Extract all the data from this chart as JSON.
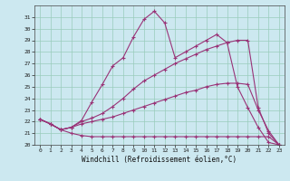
{
  "xlabel": "Windchill (Refroidissement éolien,°C)",
  "bg_color": "#cce8f0",
  "grid_color": "#99ccbb",
  "line_color": "#993377",
  "xlim": [
    -0.5,
    23.5
  ],
  "ylim": [
    20,
    32
  ],
  "yticks": [
    20,
    21,
    22,
    23,
    24,
    25,
    26,
    27,
    28,
    29,
    30,
    31
  ],
  "xticks": [
    0,
    1,
    2,
    3,
    4,
    5,
    6,
    7,
    8,
    9,
    10,
    11,
    12,
    13,
    14,
    15,
    16,
    17,
    18,
    19,
    20,
    21,
    22,
    23
  ],
  "line1_x": [
    0,
    1,
    2,
    3,
    4,
    5,
    6,
    7,
    8,
    9,
    10,
    11,
    12,
    13,
    14,
    15,
    16,
    17,
    18,
    19,
    20,
    21,
    22,
    23
  ],
  "line1_y": [
    22.2,
    21.8,
    21.3,
    21.0,
    20.8,
    20.7,
    20.7,
    20.7,
    20.7,
    20.7,
    20.7,
    20.7,
    20.7,
    20.7,
    20.7,
    20.7,
    20.7,
    20.7,
    20.7,
    20.7,
    20.7,
    20.7,
    20.7,
    20.0
  ],
  "line2_x": [
    0,
    1,
    2,
    3,
    4,
    5,
    6,
    7,
    8,
    9,
    10,
    11,
    12,
    13,
    14,
    15,
    16,
    17,
    18,
    19,
    20,
    21,
    22,
    23
  ],
  "line2_y": [
    22.2,
    21.8,
    21.3,
    21.5,
    22.1,
    23.7,
    25.2,
    26.8,
    27.5,
    29.3,
    30.8,
    31.5,
    30.5,
    27.5,
    28.0,
    28.5,
    29.0,
    29.5,
    28.8,
    25.0,
    23.2,
    21.5,
    20.2,
    20.0
  ],
  "line3_x": [
    0,
    1,
    2,
    3,
    4,
    5,
    6,
    7,
    8,
    9,
    10,
    11,
    12,
    13,
    14,
    15,
    16,
    17,
    18,
    19,
    20,
    21,
    22,
    23
  ],
  "line3_y": [
    22.2,
    21.8,
    21.3,
    21.5,
    22.0,
    22.3,
    22.7,
    23.3,
    24.0,
    24.8,
    25.5,
    26.0,
    26.5,
    27.0,
    27.4,
    27.8,
    28.2,
    28.5,
    28.8,
    29.0,
    29.0,
    23.2,
    21.0,
    20.0
  ],
  "line4_x": [
    0,
    1,
    2,
    3,
    4,
    5,
    6,
    7,
    8,
    9,
    10,
    11,
    12,
    13,
    14,
    15,
    16,
    17,
    18,
    19,
    20,
    21,
    22,
    23
  ],
  "line4_y": [
    22.2,
    21.8,
    21.3,
    21.5,
    21.8,
    22.0,
    22.2,
    22.4,
    22.7,
    23.0,
    23.3,
    23.6,
    23.9,
    24.2,
    24.5,
    24.7,
    25.0,
    25.2,
    25.3,
    25.3,
    25.2,
    23.0,
    21.2,
    20.0
  ]
}
